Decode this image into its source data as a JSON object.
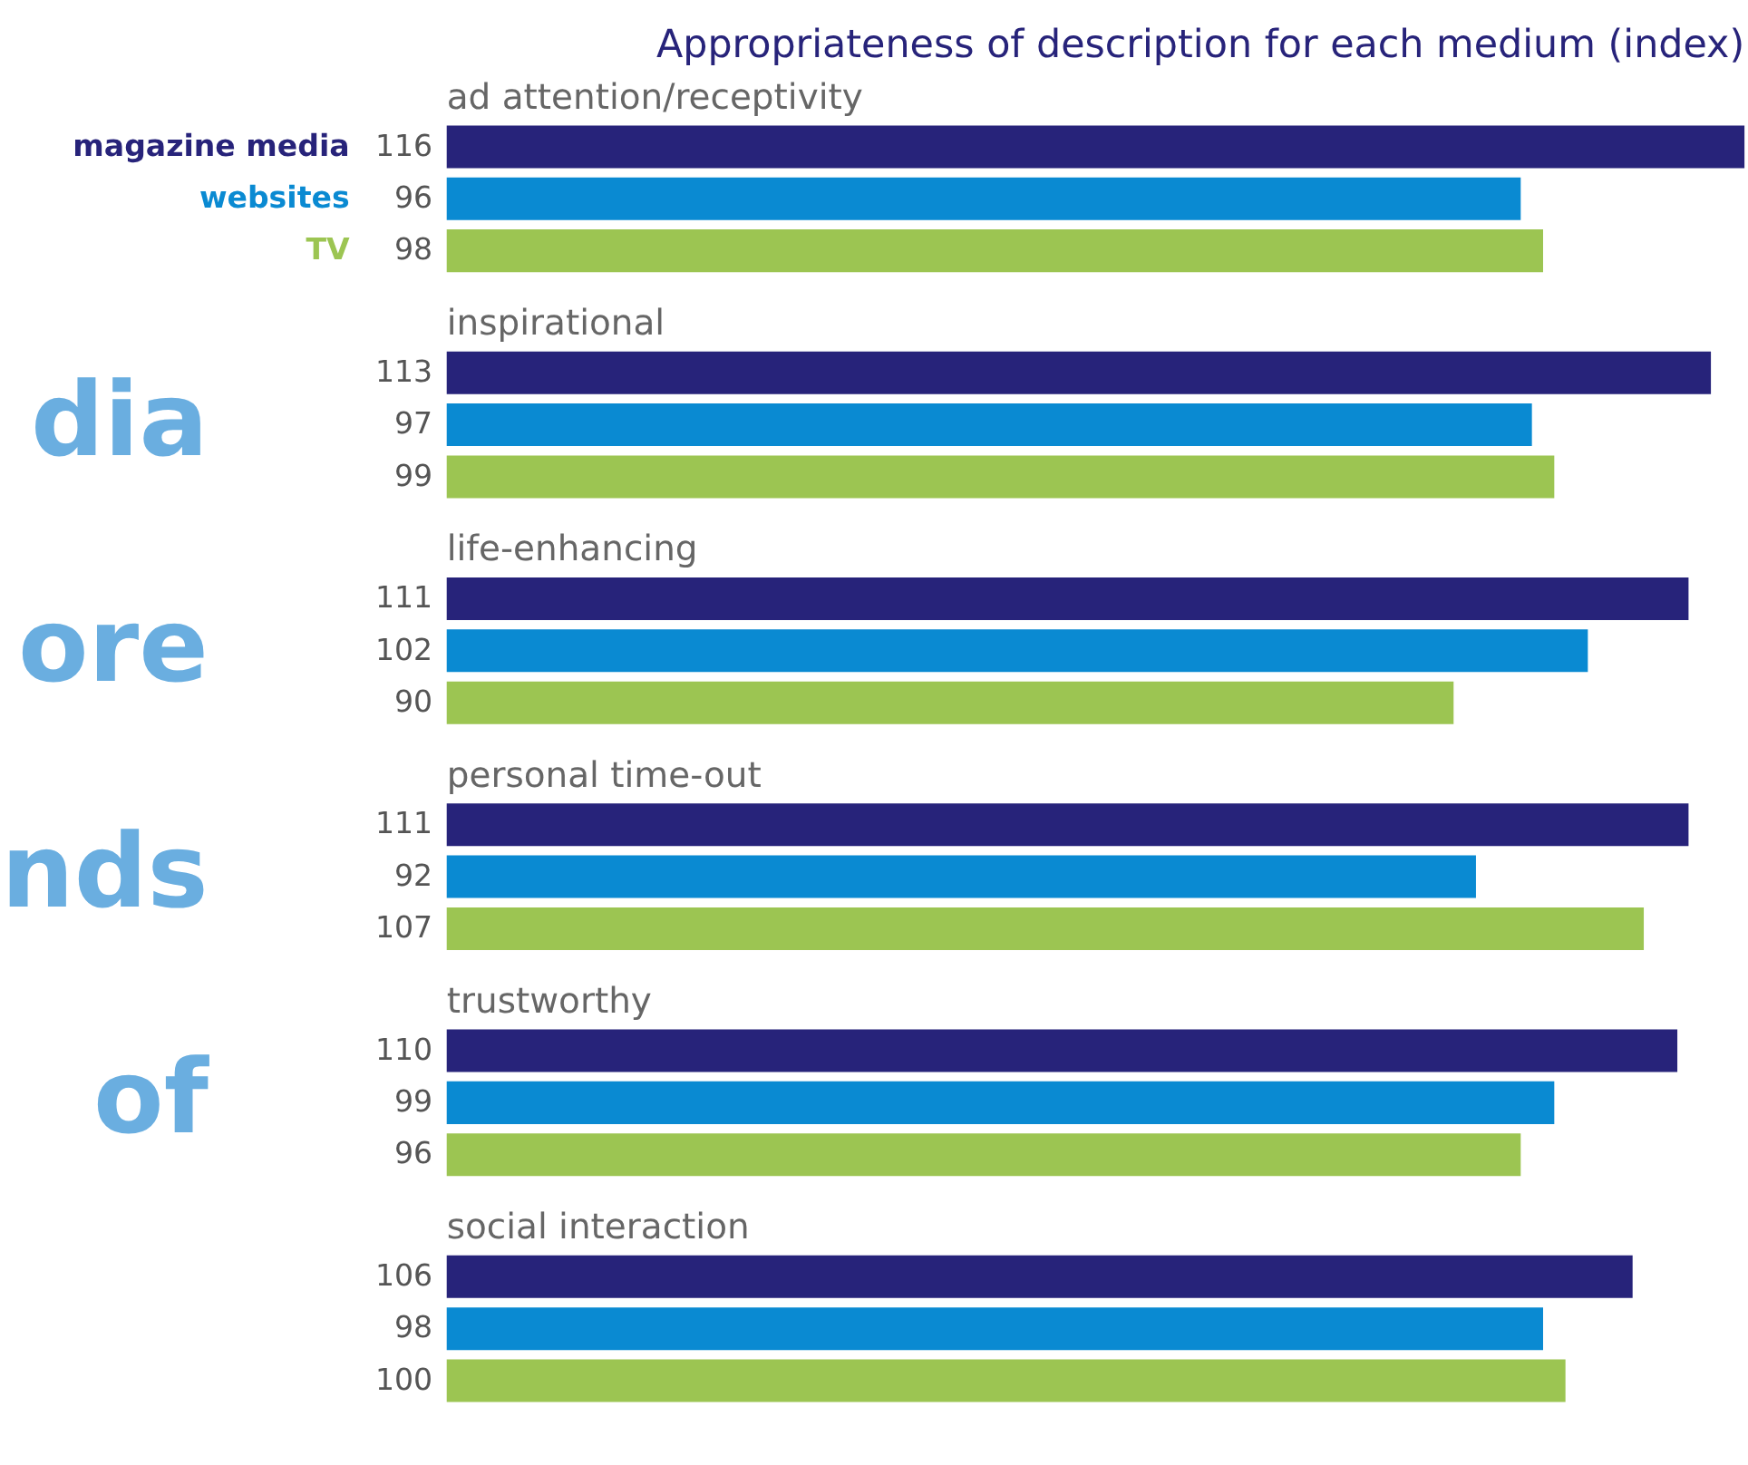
{
  "chart_data": {
    "type": "bar",
    "orientation": "horizontal",
    "title": "Appropriateness of description for each medium (index)",
    "categories": [
      "ad attention/receptivity",
      "inspirational",
      "life-enhancing",
      "personal time-out",
      "trustworthy",
      "social interaction"
    ],
    "series": [
      {
        "name": "magazine media",
        "color": "#27237a",
        "values": [
          116,
          113,
          111,
          111,
          110,
          106
        ]
      },
      {
        "name": "websites",
        "color": "#0a8ad2",
        "values": [
          96,
          97,
          102,
          92,
          99,
          98
        ]
      },
      {
        "name": "TV",
        "color": "#9cc552",
        "values": [
          98,
          99,
          90,
          107,
          96,
          100
        ]
      }
    ],
    "data_labels": true,
    "legend": "top left",
    "grid": false,
    "annotations": [
      "dia",
      "ore",
      "nds",
      "of"
    ]
  }
}
